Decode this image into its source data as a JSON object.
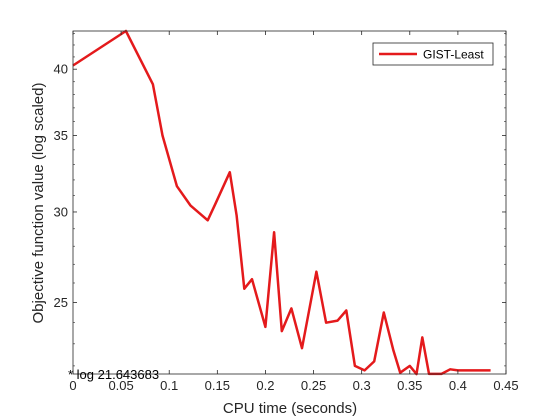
{
  "chart_data": {
    "type": "line",
    "xlabel": "CPU time (seconds)",
    "ylabel": "Objective function value (log scaled)",
    "xlim": [
      0,
      0.45
    ],
    "ylim": [
      21.643683,
      43.2
    ],
    "y_scale": "log",
    "x_ticks": [
      0,
      0.05,
      0.1,
      0.15,
      0.2,
      0.25,
      0.3,
      0.35,
      0.4,
      0.45
    ],
    "x_tick_labels": [
      "0",
      "0.05",
      "0.1",
      "0.15",
      "0.2",
      "0.25",
      "0.3",
      "0.35",
      "0.4",
      "0.45"
    ],
    "y_ticks": [
      25,
      30,
      35,
      40
    ],
    "y_tick_labels": [
      "25",
      "30",
      "35",
      "40"
    ],
    "grid": false,
    "legend_position": "top-right",
    "line_color": "#e41a1c",
    "annotation": "* log 21.643683",
    "series": [
      {
        "name": "GIST-Least",
        "x": [
          0,
          0.055,
          0.083,
          0.093,
          0.108,
          0.122,
          0.14,
          0.148,
          0.163,
          0.17,
          0.178,
          0.186,
          0.2,
          0.209,
          0.217,
          0.227,
          0.238,
          0.253,
          0.263,
          0.275,
          0.284,
          0.293,
          0.303,
          0.313,
          0.323,
          0.333,
          0.34,
          0.35,
          0.357,
          0.363,
          0.37,
          0.383,
          0.392,
          0.4,
          0.425,
          0.434
        ],
        "y": [
          40.3,
          43.2,
          38.8,
          35.0,
          31.6,
          30.4,
          29.5,
          30.5,
          32.5,
          29.8,
          25.7,
          26.2,
          23.8,
          28.8,
          23.6,
          24.7,
          22.8,
          26.6,
          24.0,
          24.1,
          24.6,
          22.0,
          21.8,
          22.2,
          24.5,
          22.7,
          21.7,
          22.0,
          21.64,
          23.3,
          21.65,
          21.65,
          21.85,
          21.8,
          21.8,
          21.8
        ]
      }
    ]
  }
}
